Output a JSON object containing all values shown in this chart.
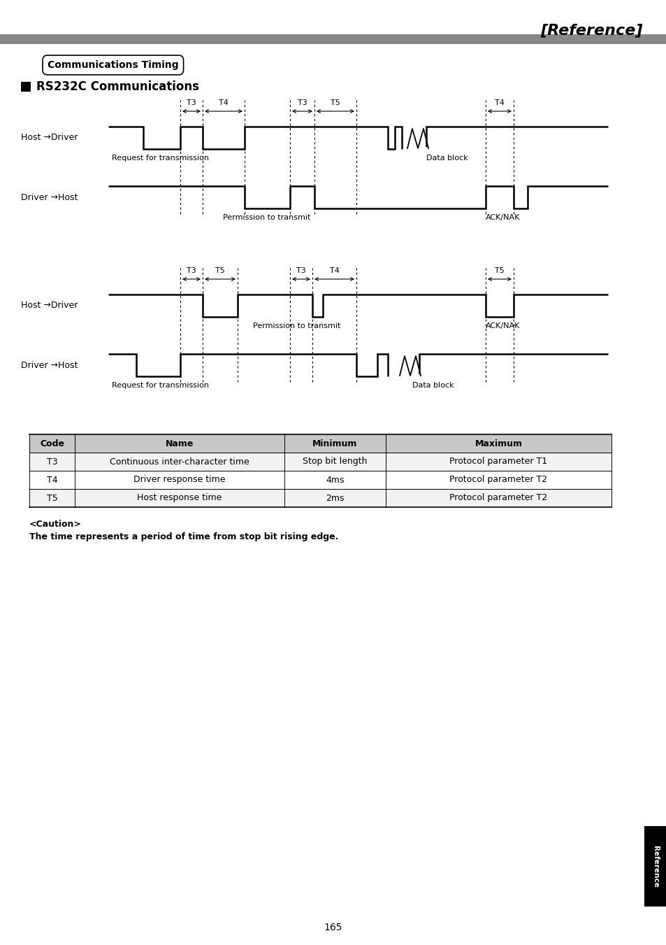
{
  "title": "[Reference]",
  "section_title": "Communications Timing",
  "subsection_title": "RS232C Communications",
  "page_number": "165",
  "sidebar_text": "Reference",
  "table": {
    "headers": [
      "Code",
      "Name",
      "Minimum",
      "Maximum"
    ],
    "rows": [
      [
        "T3",
        "Continuous inter-character time",
        "Stop bit length",
        "Protocol parameter T1"
      ],
      [
        "T4",
        "Driver response time",
        "4ms",
        "Protocol parameter T2"
      ],
      [
        "T5",
        "Host response time",
        "2ms",
        "Protocol parameter T2"
      ]
    ]
  },
  "caution_title": "<Caution>",
  "caution_text": "The time represents a period of time from stop bit rising edge.",
  "bg_color": "#ffffff",
  "line_color": "#000000",
  "header_bg": "#c8c8c8",
  "sidebar_bg": "#000000",
  "sidebar_text_color": "#ffffff",
  "header_bar_color": "#888888"
}
